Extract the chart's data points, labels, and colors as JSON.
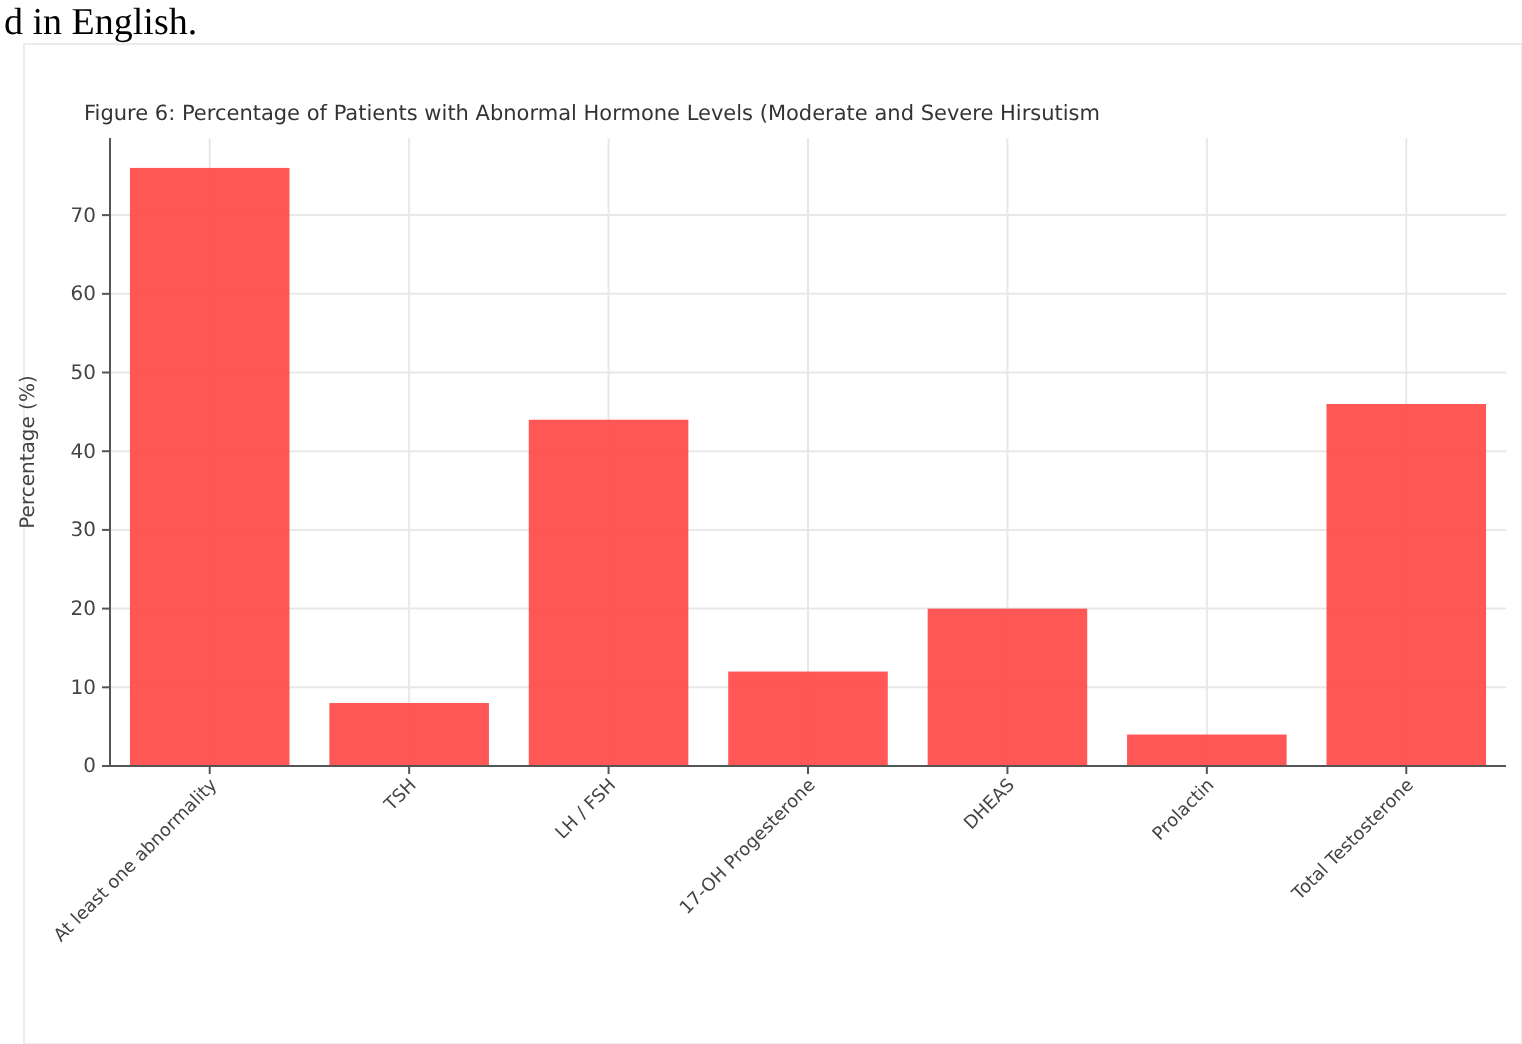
{
  "chart_data": {
    "type": "bar",
    "title": "Figure 6: Percentage of Patients with Abnormal Hormone Levels (Moderate and Severe Hirsutism",
    "ylabel": "Percentage (%)",
    "annotations": [
      "d in English."
    ],
    "categories": [
      "At least one abnormality",
      "TSH",
      "LH / FSH",
      "17-OH Progesterone",
      "DHEAS",
      "Prolactin",
      "Total Testosterone"
    ],
    "values": [
      76,
      8,
      44,
      12,
      20,
      4,
      46
    ],
    "color": "#ff4d4d",
    "ylim": [
      0,
      79.8
    ],
    "yticks": [
      0,
      10,
      20,
      30,
      40,
      50,
      60,
      70
    ],
    "grid": true
  }
}
